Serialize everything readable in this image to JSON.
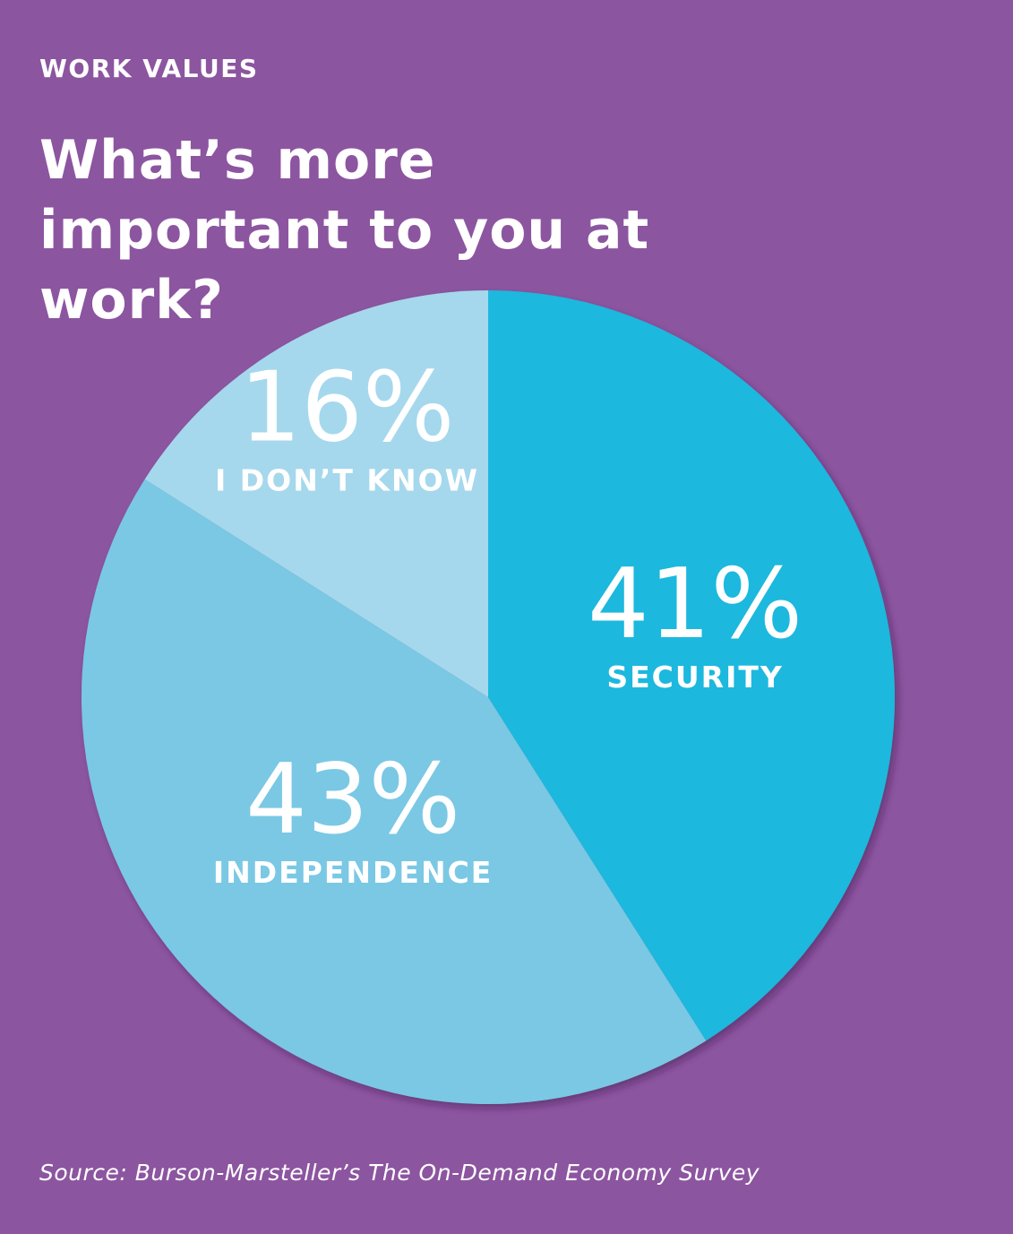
{
  "chart_data": {
    "type": "pie",
    "subtitle": "WORK VALUES",
    "title": "What’s more important to you at work?",
    "categories": [
      "SECURITY",
      "INDEPENDENCE",
      "I DON’T KNOW"
    ],
    "values": [
      41,
      43,
      16
    ],
    "value_labels": [
      "41%",
      "43%",
      "16%"
    ],
    "colors": [
      "#1fb8de",
      "#7ac8e4",
      "#a5d8ec"
    ],
    "source": "Source: Burson-Marsteller’s The On-Demand Economy Survey"
  }
}
